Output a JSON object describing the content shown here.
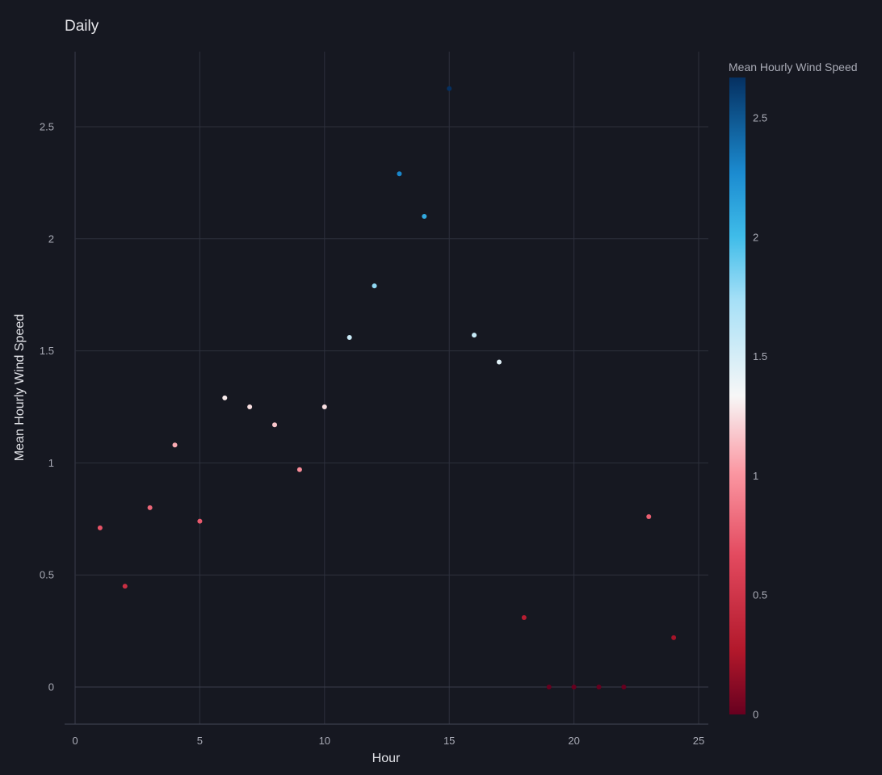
{
  "chart_data": {
    "type": "scatter",
    "title": "Daily",
    "xlabel": "Hour",
    "ylabel": "Mean Hourly Wind Speed",
    "xlim": [
      -0.4,
      25.3
    ],
    "ylim": [
      -0.17,
      2.83
    ],
    "x_ticks": [
      0,
      5,
      10,
      15,
      20,
      25
    ],
    "x_tick_labels": [
      "0",
      "5",
      "10",
      "15",
      "20",
      "25"
    ],
    "y_ticks": [
      0,
      0.5,
      1,
      1.5,
      2,
      2.5
    ],
    "y_tick_labels": [
      "0",
      "0.5",
      "1",
      "1.5",
      "2",
      "2.5"
    ],
    "grid": true,
    "colorbar": {
      "title": "Mean Hourly Wind Speed",
      "range": [
        0,
        2.67
      ],
      "ticks": [
        0,
        0.5,
        1,
        1.5,
        2,
        2.5
      ],
      "tick_labels": [
        "0",
        "0.5",
        "1",
        "1.5",
        "2",
        "2.5"
      ],
      "colorscale": [
        [
          0.0,
          "#67001f"
        ],
        [
          0.1,
          "#b2182b"
        ],
        [
          0.25,
          "#e34a5f"
        ],
        [
          0.38,
          "#fb97a2"
        ],
        [
          0.5,
          "#f7f7f7"
        ],
        [
          0.65,
          "#a6e0f7"
        ],
        [
          0.75,
          "#3fbce9"
        ],
        [
          0.85,
          "#1b8bd0"
        ],
        [
          1.0,
          "#053061"
        ]
      ]
    },
    "x": [
      1,
      2,
      3,
      4,
      5,
      6,
      7,
      8,
      9,
      10,
      11,
      12,
      13,
      14,
      15,
      16,
      17,
      18,
      19,
      20,
      21,
      22,
      23,
      24
    ],
    "y": [
      0.71,
      0.45,
      0.8,
      1.08,
      0.74,
      1.29,
      1.25,
      1.17,
      0.97,
      1.25,
      1.56,
      1.79,
      2.29,
      2.1,
      2.67,
      1.57,
      1.45,
      0.31,
      0.0,
      0.0,
      0.0,
      0.0,
      0.76,
      0.22
    ]
  }
}
